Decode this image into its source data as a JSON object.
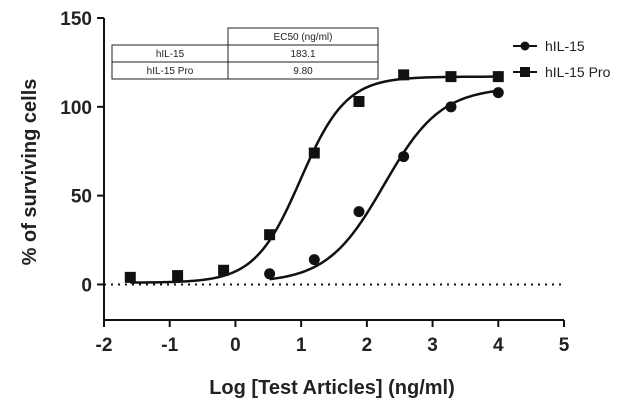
{
  "chart_data": {
    "type": "scatter",
    "xlabel": "Log [Test Articles] (ng/ml)",
    "ylabel": "% of surviving cells",
    "xlim": [
      -2,
      5
    ],
    "ylim": [
      -20,
      150
    ],
    "xticks": [
      "-2",
      "-1",
      "0",
      "1",
      "2",
      "3",
      "4",
      "5"
    ],
    "yticks": [
      "0",
      "50",
      "100",
      "150"
    ],
    "grid": false,
    "legend_position": "top-right",
    "reference_line": {
      "y": 0,
      "style": "dotted"
    },
    "series": [
      {
        "name": "hIL-15",
        "marker": "circle",
        "x": [
          0.52,
          1.2,
          1.88,
          2.56,
          3.28,
          4.0
        ],
        "y": [
          6,
          14,
          41,
          72,
          100,
          108
        ],
        "fit": {
          "bottom": 1,
          "top": 111,
          "logEC50": 2.26,
          "hill": 1.0
        }
      },
      {
        "name": "hIL-15 Pro",
        "marker": "square",
        "x": [
          -1.6,
          -0.88,
          -0.18,
          0.52,
          1.2,
          1.88,
          2.56,
          3.28,
          4.0
        ],
        "y": [
          4,
          5,
          8,
          28,
          74,
          103,
          118,
          117,
          117
        ],
        "fit": {
          "bottom": 1,
          "top": 117,
          "logEC50": 0.99,
          "hill": 1.25
        }
      }
    ],
    "ec50_table": {
      "header": [
        "",
        "EC50 (ng/ml)"
      ],
      "rows": [
        [
          "hIL-15",
          "183.1"
        ],
        [
          "hIL-15 Pro",
          "9.80"
        ]
      ]
    }
  }
}
